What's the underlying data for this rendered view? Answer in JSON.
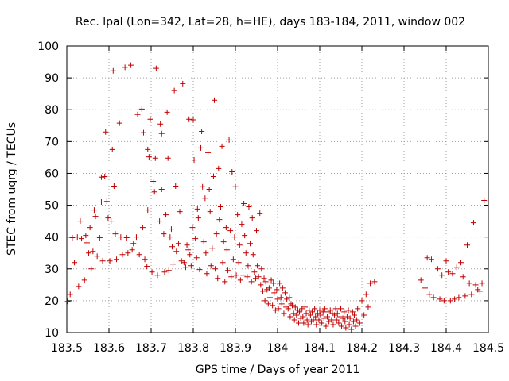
{
  "chart_data": {
    "type": "scatter",
    "title": "Rec. lpal (Lon=342, Lat=28, h=HE), days 183-184, 2011, window 002",
    "xlabel": "GPS time / Days of year 2011",
    "ylabel": "STEC from uqrg / TECUs",
    "xlim": [
      183.5,
      184.5
    ],
    "ylim": [
      10,
      100
    ],
    "xticks": [
      183.5,
      183.6,
      183.7,
      183.8,
      183.9,
      184,
      184.1,
      184.2,
      184.3,
      184.4,
      184.5
    ],
    "xtick_labels": [
      "183.5",
      "183.6",
      "183.7",
      "183.8",
      "183.9",
      "184",
      "184.1",
      "184.2",
      "184.3",
      "184.4",
      "184.5"
    ],
    "yticks": [
      10,
      20,
      30,
      40,
      50,
      60,
      70,
      80,
      90,
      100
    ],
    "ytick_labels": [
      "10",
      "20",
      "30",
      "40",
      "50",
      "60",
      "70",
      "80",
      "90",
      "100"
    ],
    "grid": true,
    "marker": "+",
    "color": "#c00000",
    "points": [
      [
        183.502,
        19.8
      ],
      [
        183.508,
        22
      ],
      [
        183.513,
        39.8
      ],
      [
        183.518,
        32
      ],
      [
        183.525,
        40
      ],
      [
        183.528,
        24.5
      ],
      [
        183.532,
        45
      ],
      [
        183.535,
        39.5
      ],
      [
        183.542,
        26.5
      ],
      [
        183.545,
        40.5
      ],
      [
        183.548,
        38.2
      ],
      [
        183.552,
        35
      ],
      [
        183.555,
        43
      ],
      [
        183.558,
        30
      ],
      [
        183.562,
        35.5
      ],
      [
        183.565,
        48.5
      ],
      [
        183.568,
        46.5
      ],
      [
        183.572,
        34
      ],
      [
        183.578,
        39.8
      ],
      [
        183.582,
        51
      ],
      [
        183.582,
        58.8
      ],
      [
        183.585,
        32.5
      ],
      [
        183.59,
        59
      ],
      [
        183.592,
        73
      ],
      [
        183.595,
        51.2
      ],
      [
        183.598,
        46
      ],
      [
        183.602,
        32.5
      ],
      [
        183.605,
        45
      ],
      [
        183.608,
        67.5
      ],
      [
        183.61,
        92.2
      ],
      [
        183.612,
        56
      ],
      [
        183.615,
        41
      ],
      [
        183.618,
        33
      ],
      [
        183.625,
        75.8
      ],
      [
        183.628,
        40
      ],
      [
        183.632,
        34.5
      ],
      [
        183.638,
        93.3
      ],
      [
        183.642,
        39.8
      ],
      [
        183.645,
        35
      ],
      [
        183.652,
        94
      ],
      [
        183.655,
        36
      ],
      [
        183.658,
        38
      ],
      [
        183.665,
        40
      ],
      [
        183.668,
        78.5
      ],
      [
        183.672,
        34.5
      ],
      [
        183.678,
        80.2
      ],
      [
        183.68,
        43
      ],
      [
        183.682,
        72.8
      ],
      [
        183.685,
        33
      ],
      [
        183.69,
        30.8
      ],
      [
        183.692,
        48.5
      ],
      [
        183.692,
        67.5
      ],
      [
        183.695,
        65.2
      ],
      [
        183.698,
        77
      ],
      [
        183.702,
        29
      ],
      [
        183.705,
        57.5
      ],
      [
        183.708,
        54.2
      ],
      [
        183.71,
        64.8
      ],
      [
        183.712,
        93
      ],
      [
        183.715,
        28
      ],
      [
        183.72,
        45
      ],
      [
        183.722,
        75.5
      ],
      [
        183.725,
        55
      ],
      [
        183.725,
        72.5
      ],
      [
        183.73,
        41
      ],
      [
        183.732,
        29
      ],
      [
        183.735,
        47
      ],
      [
        183.738,
        79.2
      ],
      [
        183.74,
        64.8
      ],
      [
        183.742,
        29.5
      ],
      [
        183.745,
        40
      ],
      [
        183.748,
        42.5
      ],
      [
        183.75,
        37
      ],
      [
        183.752,
        31.5
      ],
      [
        183.755,
        86
      ],
      [
        183.758,
        56
      ],
      [
        183.76,
        35.5
      ],
      [
        183.765,
        38
      ],
      [
        183.768,
        48
      ],
      [
        183.772,
        32.5
      ],
      [
        183.775,
        88.2
      ],
      [
        183.778,
        32
      ],
      [
        183.782,
        30.5
      ],
      [
        183.785,
        37.5
      ],
      [
        183.788,
        36
      ],
      [
        183.79,
        77
      ],
      [
        183.792,
        34.5
      ],
      [
        183.795,
        31
      ],
      [
        183.798,
        43
      ],
      [
        183.8,
        76.8
      ],
      [
        183.802,
        64.2
      ],
      [
        183.805,
        39.5
      ],
      [
        183.808,
        33.5
      ],
      [
        183.81,
        48.8
      ],
      [
        183.812,
        46
      ],
      [
        183.815,
        29.8
      ],
      [
        183.818,
        68
      ],
      [
        183.82,
        73.2
      ],
      [
        183.822,
        55.8
      ],
      [
        183.825,
        38.5
      ],
      [
        183.828,
        52.2
      ],
      [
        183.83,
        35
      ],
      [
        183.832,
        28.5
      ],
      [
        183.835,
        66.5
      ],
      [
        183.838,
        55
      ],
      [
        183.84,
        48
      ],
      [
        183.842,
        31
      ],
      [
        183.845,
        36.5
      ],
      [
        183.848,
        59
      ],
      [
        183.85,
        83
      ],
      [
        183.852,
        30
      ],
      [
        183.855,
        41
      ],
      [
        183.858,
        27
      ],
      [
        183.86,
        61.5
      ],
      [
        183.862,
        45.5
      ],
      [
        183.865,
        49.5
      ],
      [
        183.868,
        68.5
      ],
      [
        183.87,
        32
      ],
      [
        183.872,
        38.5
      ],
      [
        183.875,
        26
      ],
      [
        183.878,
        43
      ],
      [
        183.88,
        36
      ],
      [
        183.882,
        29.5
      ],
      [
        183.885,
        70.5
      ],
      [
        183.888,
        42
      ],
      [
        183.89,
        27.5
      ],
      [
        183.892,
        60.5
      ],
      [
        183.895,
        33
      ],
      [
        183.898,
        40
      ],
      [
        183.9,
        55.8
      ],
      [
        183.902,
        28
      ],
      [
        183.905,
        47
      ],
      [
        183.908,
        32
      ],
      [
        183.91,
        37.5
      ],
      [
        183.912,
        26.5
      ],
      [
        183.915,
        44
      ],
      [
        183.918,
        28
      ],
      [
        183.92,
        50.5
      ],
      [
        183.922,
        40.5
      ],
      [
        183.925,
        35
      ],
      [
        183.928,
        27.5
      ],
      [
        183.93,
        31
      ],
      [
        183.932,
        49.5
      ],
      [
        183.935,
        38
      ],
      [
        183.938,
        26
      ],
      [
        183.94,
        46
      ],
      [
        183.942,
        34.5
      ],
      [
        183.945,
        29
      ],
      [
        183.948,
        27
      ],
      [
        183.95,
        42
      ],
      [
        183.952,
        31
      ],
      [
        183.955,
        27.5
      ],
      [
        183.958,
        47.5
      ],
      [
        183.96,
        25
      ],
      [
        183.962,
        30
      ],
      [
        183.965,
        23
      ],
      [
        183.968,
        27
      ],
      [
        183.97,
        20
      ],
      [
        183.972,
        26
      ],
      [
        183.975,
        23.5
      ],
      [
        183.978,
        19
      ],
      [
        183.98,
        24
      ],
      [
        183.982,
        21
      ],
      [
        183.985,
        26.5
      ],
      [
        183.988,
        18.5
      ],
      [
        183.99,
        25.5
      ],
      [
        183.992,
        22.5
      ],
      [
        183.995,
        17
      ],
      [
        183.998,
        23.5
      ],
      [
        184,
        20.5
      ],
      [
        184.002,
        17.5
      ],
      [
        184.005,
        25.5
      ],
      [
        184.008,
        21
      ],
      [
        184.01,
        19
      ],
      [
        184.012,
        24
      ],
      [
        184.015,
        16
      ],
      [
        184.018,
        22.5
      ],
      [
        184.02,
        18
      ],
      [
        184.022,
        20.5
      ],
      [
        184.025,
        17.5
      ],
      [
        184.028,
        21
      ],
      [
        184.03,
        15
      ],
      [
        184.032,
        19
      ],
      [
        184.035,
        18.5
      ],
      [
        184.038,
        16
      ],
      [
        184.04,
        14
      ],
      [
        184.042,
        18
      ],
      [
        184.045,
        15.5
      ],
      [
        184.048,
        17
      ],
      [
        184.05,
        13
      ],
      [
        184.052,
        16.5
      ],
      [
        184.055,
        14.5
      ],
      [
        184.058,
        17.5
      ],
      [
        184.06,
        15
      ],
      [
        184.062,
        13
      ],
      [
        184.065,
        18
      ],
      [
        184.068,
        16
      ],
      [
        184.07,
        14
      ],
      [
        184.072,
        12.5
      ],
      [
        184.075,
        17
      ],
      [
        184.078,
        15.5
      ],
      [
        184.08,
        13.5
      ],
      [
        184.082,
        16.5
      ],
      [
        184.085,
        14
      ],
      [
        184.088,
        17.5
      ],
      [
        184.09,
        15
      ],
      [
        184.092,
        12.5
      ],
      [
        184.095,
        16
      ],
      [
        184.098,
        14
      ],
      [
        184.1,
        17
      ],
      [
        184.102,
        15.5
      ],
      [
        184.105,
        13
      ],
      [
        184.108,
        16.5
      ],
      [
        184.11,
        14.5
      ],
      [
        184.112,
        17.5
      ],
      [
        184.115,
        12
      ],
      [
        184.118,
        15
      ],
      [
        184.12,
        16.5
      ],
      [
        184.122,
        13.5
      ],
      [
        184.125,
        17
      ],
      [
        184.128,
        14
      ],
      [
        184.13,
        16
      ],
      [
        184.132,
        12.5
      ],
      [
        184.135,
        15.5
      ],
      [
        184.138,
        17.5
      ],
      [
        184.14,
        14
      ],
      [
        184.142,
        16
      ],
      [
        184.145,
        13
      ],
      [
        184.148,
        15
      ],
      [
        184.15,
        17.5
      ],
      [
        184.152,
        12
      ],
      [
        184.155,
        14.5
      ],
      [
        184.158,
        16.5
      ],
      [
        184.16,
        13.5
      ],
      [
        184.162,
        11.5
      ],
      [
        184.165,
        15
      ],
      [
        184.168,
        17
      ],
      [
        184.17,
        12.5
      ],
      [
        184.172,
        14.5
      ],
      [
        184.175,
        11
      ],
      [
        184.178,
        16.5
      ],
      [
        184.18,
        13.5
      ],
      [
        184.182,
        15.5
      ],
      [
        184.185,
        12
      ],
      [
        184.188,
        14
      ],
      [
        184.19,
        17.5
      ],
      [
        184.195,
        13
      ],
      [
        184.2,
        20
      ],
      [
        184.205,
        15.5
      ],
      [
        184.21,
        22
      ],
      [
        184.215,
        18
      ],
      [
        184.22,
        25.5
      ],
      [
        184.23,
        26
      ],
      [
        184.34,
        26.5
      ],
      [
        184.35,
        24
      ],
      [
        184.355,
        33.5
      ],
      [
        184.36,
        22
      ],
      [
        184.365,
        33
      ],
      [
        184.37,
        21
      ],
      [
        184.38,
        30
      ],
      [
        184.385,
        20.5
      ],
      [
        184.39,
        28
      ],
      [
        184.395,
        20
      ],
      [
        184.4,
        32.5
      ],
      [
        184.405,
        29
      ],
      [
        184.41,
        20
      ],
      [
        184.415,
        28.5
      ],
      [
        184.42,
        20.5
      ],
      [
        184.425,
        30.5
      ],
      [
        184.43,
        21
      ],
      [
        184.435,
        32
      ],
      [
        184.44,
        27.5
      ],
      [
        184.445,
        21.5
      ],
      [
        184.45,
        37.5
      ],
      [
        184.455,
        25.5
      ],
      [
        184.46,
        22
      ],
      [
        184.465,
        44.5
      ],
      [
        184.47,
        25
      ],
      [
        184.475,
        23.5
      ],
      [
        184.48,
        23
      ],
      [
        184.485,
        25.5
      ],
      [
        184.49,
        51.5
      ]
    ]
  }
}
